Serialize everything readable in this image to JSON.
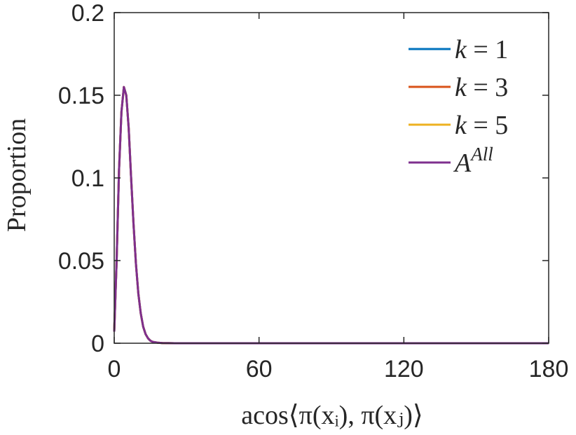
{
  "chart_data": {
    "type": "line",
    "xlabel": "acos⟨π(xᵢ), π(xⱼ)⟩",
    "ylabel": "Proportion",
    "xlim": [
      0,
      180
    ],
    "ylim": [
      0,
      0.2
    ],
    "x_ticks": [
      "0",
      "60",
      "120",
      "180"
    ],
    "x_tick_values": [
      0,
      60,
      120,
      180
    ],
    "y_ticks": [
      "0",
      "0.05",
      "0.1",
      "0.15",
      "0.2"
    ],
    "y_tick_values": [
      0,
      0.05,
      0.1,
      0.15,
      0.2
    ],
    "grid": false,
    "legend_position": "top-right",
    "x": [
      0,
      1,
      2,
      3,
      4,
      5,
      6,
      7,
      8,
      9,
      10,
      11,
      12,
      13,
      14,
      15,
      16,
      18,
      20,
      25,
      30,
      40,
      60,
      90,
      120,
      150,
      180
    ],
    "series": [
      {
        "name": "k = 1",
        "legend_label": {
          "var": "k",
          "eq": " = 1"
        },
        "color": "#0072BD",
        "values": [
          0.007,
          0.05,
          0.105,
          0.14,
          0.155,
          0.15,
          0.13,
          0.1,
          0.072,
          0.048,
          0.03,
          0.018,
          0.01,
          0.0055,
          0.003,
          0.0015,
          0.0008,
          0.0003,
          0.0001,
          0,
          0,
          0,
          0,
          0,
          0,
          0,
          0
        ]
      },
      {
        "name": "k = 3",
        "legend_label": {
          "var": "k",
          "eq": " = 3"
        },
        "color": "#D95319",
        "values": [
          0.007,
          0.05,
          0.105,
          0.14,
          0.155,
          0.15,
          0.13,
          0.1,
          0.072,
          0.048,
          0.03,
          0.018,
          0.01,
          0.0055,
          0.003,
          0.0015,
          0.0008,
          0.0003,
          0.0001,
          0,
          0,
          0,
          0,
          0,
          0,
          0,
          0
        ]
      },
      {
        "name": "k = 5",
        "legend_label": {
          "var": "k",
          "eq": " = 5"
        },
        "color": "#EDB120",
        "values": [
          0.007,
          0.05,
          0.105,
          0.14,
          0.155,
          0.15,
          0.13,
          0.1,
          0.072,
          0.048,
          0.03,
          0.018,
          0.01,
          0.0055,
          0.003,
          0.0015,
          0.0008,
          0.0003,
          0.0001,
          0,
          0,
          0,
          0,
          0,
          0,
          0,
          0
        ]
      },
      {
        "name": "A^All",
        "legend_label": {
          "var": "A",
          "sup": "All"
        },
        "color": "#7E2F8E",
        "values": [
          0.007,
          0.05,
          0.105,
          0.14,
          0.155,
          0.15,
          0.13,
          0.1,
          0.072,
          0.048,
          0.03,
          0.018,
          0.01,
          0.0055,
          0.003,
          0.0015,
          0.0008,
          0.0003,
          0.0001,
          0,
          0,
          0,
          0,
          0,
          0,
          0,
          0
        ]
      }
    ]
  }
}
